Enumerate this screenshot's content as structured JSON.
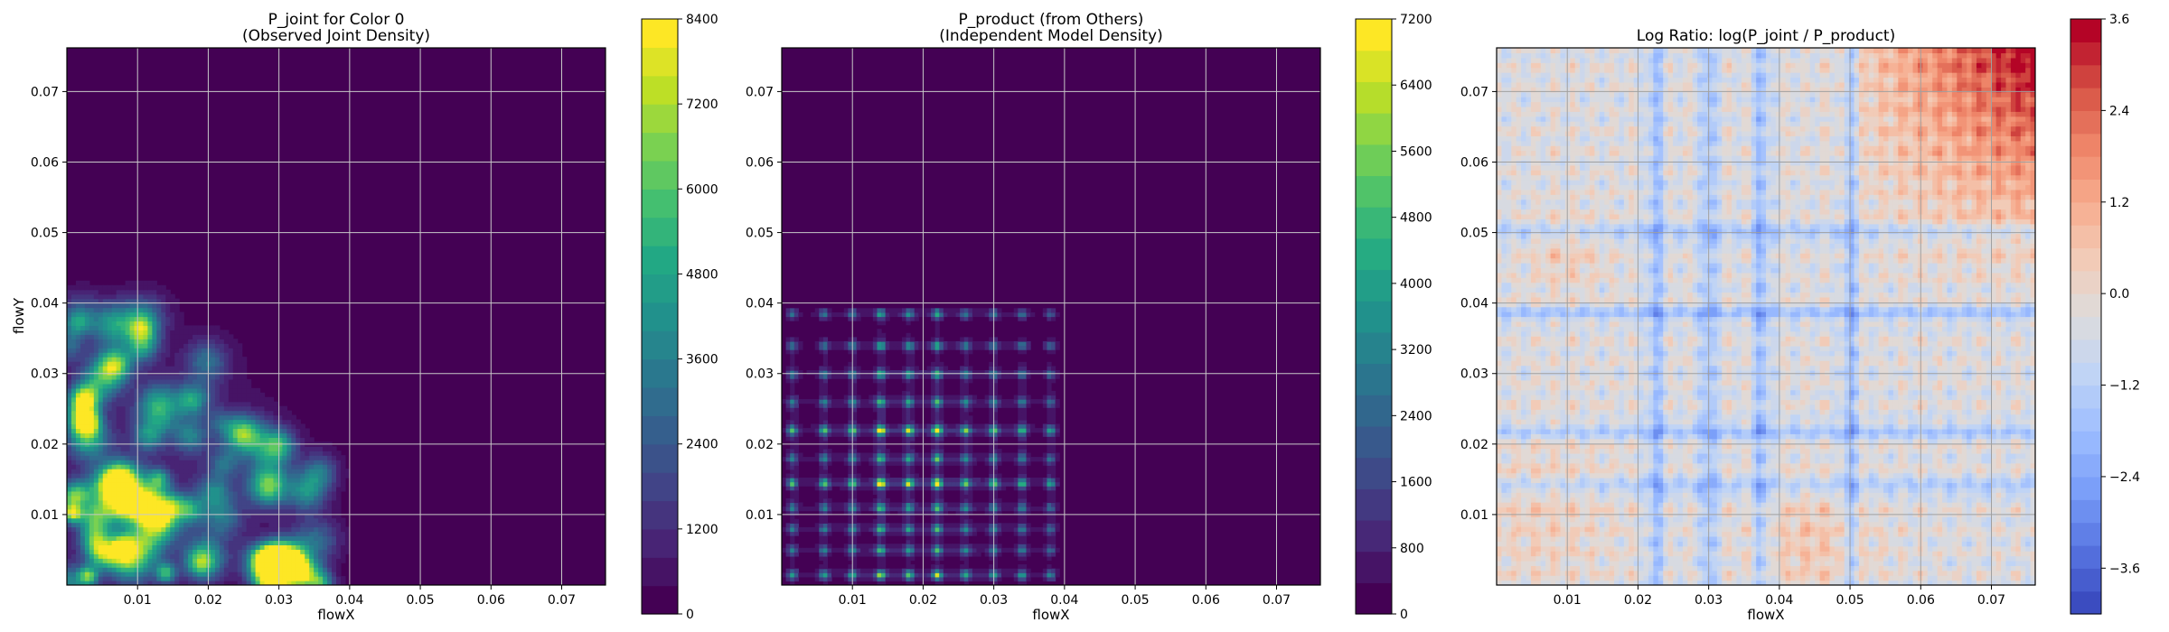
{
  "chart_data": [
    {
      "type": "heatmap",
      "title": "P_joint for Color 0",
      "subtitle": "(Observed Joint Density)",
      "xlabel": "flowX",
      "ylabel": "flowY",
      "xlim": [
        0.0,
        0.0762
      ],
      "ylim": [
        0.0,
        0.0762
      ],
      "xticks": [
        0.01,
        0.02,
        0.03,
        0.04,
        0.05,
        0.06,
        0.07
      ],
      "xtick_labels": [
        "0.01",
        "0.02",
        "0.03",
        "0.04",
        "0.05",
        "0.06",
        "0.07"
      ],
      "yticks": [
        0.01,
        0.02,
        0.03,
        0.04,
        0.05,
        0.06,
        0.07
      ],
      "ytick_labels": [
        "0.01",
        "0.02",
        "0.03",
        "0.04",
        "0.05",
        "0.06",
        "0.07"
      ],
      "grid": true,
      "colormap": "viridis",
      "colorbar": {
        "min": 0,
        "max": 8400,
        "levels": 21,
        "ticks": [
          0,
          1200,
          2400,
          3600,
          4800,
          6000,
          7200,
          8400
        ],
        "tick_labels": [
          "0",
          "1200",
          "2400",
          "3600",
          "4800",
          "6000",
          "7200",
          "8400"
        ]
      },
      "density_summary": "clustered peaks in lower-left region, mostly x<0.035 and y<0.045; brightest near (0.001,0.01), (0.003,0.0015), (0.014,0.002)"
    },
    {
      "type": "heatmap",
      "title": "P_product (from Others)",
      "subtitle": "(Independent Model Density)",
      "xlabel": "flowX",
      "ylabel": "",
      "xlim": [
        0.0,
        0.0762
      ],
      "ylim": [
        0.0,
        0.0762
      ],
      "xticks": [
        0.01,
        0.02,
        0.03,
        0.04,
        0.05,
        0.06,
        0.07
      ],
      "xtick_labels": [
        "0.01",
        "0.02",
        "0.03",
        "0.04",
        "0.05",
        "0.06",
        "0.07"
      ],
      "yticks": [
        0.01,
        0.02,
        0.03,
        0.04,
        0.05,
        0.06,
        0.07
      ],
      "ytick_labels": [
        "0.01",
        "0.02",
        "0.03",
        "0.04",
        "0.05",
        "0.06",
        "0.07"
      ],
      "grid": true,
      "colormap": "viridis",
      "colorbar": {
        "min": 0,
        "max": 7200,
        "levels": 19,
        "ticks": [
          0,
          800,
          1600,
          2400,
          3200,
          4000,
          4800,
          5600,
          6400,
          7200
        ],
        "tick_labels": [
          "0",
          "800",
          "1600",
          "2400",
          "3200",
          "4000",
          "4800",
          "5600",
          "6400",
          "7200"
        ]
      },
      "x_peaks": [
        0.0015,
        0.006,
        0.01,
        0.014,
        0.018,
        0.022,
        0.026,
        0.03,
        0.034,
        0.038
      ],
      "y_peaks": [
        0.0015,
        0.005,
        0.008,
        0.011,
        0.0145,
        0.018,
        0.022,
        0.026,
        0.03,
        0.034,
        0.0385
      ]
    },
    {
      "type": "heatmap",
      "title": "Log Ratio: log(P_joint / P_product)",
      "xlabel": "flowX",
      "ylabel": "",
      "xlim": [
        0.0,
        0.0762
      ],
      "ylim": [
        0.0,
        0.0762
      ],
      "xticks": [
        0.01,
        0.02,
        0.03,
        0.04,
        0.05,
        0.06,
        0.07
      ],
      "xtick_labels": [
        "0.01",
        "0.02",
        "0.03",
        "0.04",
        "0.05",
        "0.06",
        "0.07"
      ],
      "yticks": [
        0.01,
        0.02,
        0.03,
        0.04,
        0.05,
        0.06,
        0.07
      ],
      "ytick_labels": [
        "0.01",
        "0.02",
        "0.03",
        "0.04",
        "0.05",
        "0.06",
        "0.07"
      ],
      "grid": true,
      "colormap": "coolwarm",
      "colorbar": {
        "min": -4.2,
        "max": 3.6,
        "levels": 26,
        "ticks": [
          -3.6,
          -2.4,
          -1.2,
          0.0,
          1.2,
          2.4,
          3.6
        ],
        "tick_labels": [
          "−3.6",
          "−2.4",
          "−1.2",
          "0.0",
          "1.2",
          "2.4",
          "3.6"
        ]
      },
      "density_summary": "near-zero background with warm region toward upper-right (up to ~3.6) and blue bands along x~0.022, 0.030 and y~0.038, 0.050"
    }
  ]
}
